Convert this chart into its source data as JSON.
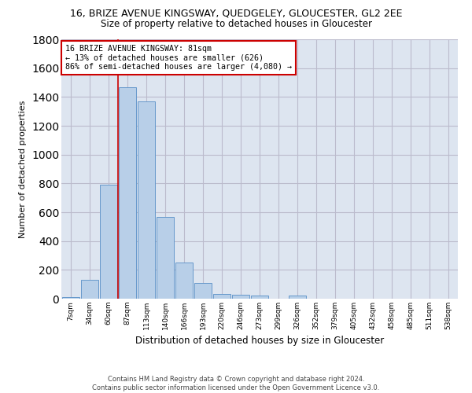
{
  "title": "16, BRIZE AVENUE KINGSWAY, QUEDGELEY, GLOUCESTER, GL2 2EE",
  "subtitle": "Size of property relative to detached houses in Gloucester",
  "xlabel": "Distribution of detached houses by size in Gloucester",
  "ylabel": "Number of detached properties",
  "bar_values": [
    10,
    130,
    790,
    1470,
    1370,
    570,
    250,
    110,
    35,
    30,
    20,
    0,
    20,
    0,
    0,
    0,
    0,
    0,
    0,
    0,
    0
  ],
  "tick_labels": [
    "7sqm",
    "34sqm",
    "60sqm",
    "87sqm",
    "113sqm",
    "140sqm",
    "166sqm",
    "193sqm",
    "220sqm",
    "246sqm",
    "273sqm",
    "299sqm",
    "326sqm",
    "352sqm",
    "379sqm",
    "405sqm",
    "432sqm",
    "458sqm",
    "485sqm",
    "511sqm",
    "538sqm"
  ],
  "bar_color": "#b8cfe8",
  "bar_edge_color": "#6699cc",
  "grid_color": "#bbbbcc",
  "bg_color": "#dde5f0",
  "red_line_x": 3,
  "red_line_color": "#cc0000",
  "annotation_text": "16 BRIZE AVENUE KINGSWAY: 81sqm\n← 13% of detached houses are smaller (626)\n86% of semi-detached houses are larger (4,080) →",
  "annotation_box_color": "#cc0000",
  "ylim": [
    0,
    1800
  ],
  "yticks": [
    0,
    200,
    400,
    600,
    800,
    1000,
    1200,
    1400,
    1600,
    1800
  ],
  "footer1": "Contains HM Land Registry data © Crown copyright and database right 2024.",
  "footer2": "Contains public sector information licensed under the Open Government Licence v3.0."
}
